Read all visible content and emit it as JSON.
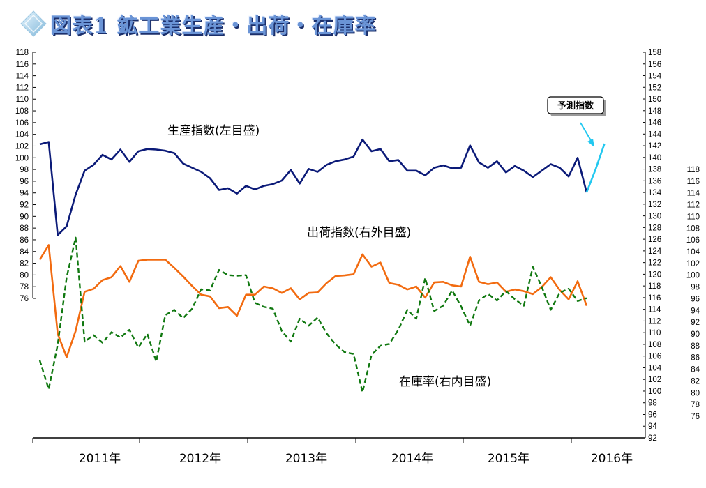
{
  "title": "図表1 鉱工業生産・出荷・在庫率",
  "chart_data": {
    "type": "line",
    "x_labels": [
      "2011年",
      "2012年",
      "2013年",
      "2014年",
      "2015年",
      "2016年"
    ],
    "axes": {
      "left": {
        "min": 76,
        "max": 118,
        "step": 2
      },
      "right_outer": {
        "min": 92,
        "max": 158,
        "step": 2
      },
      "right_inner": {
        "min": 76,
        "max": 118,
        "step": 2
      }
    },
    "annotations": {
      "production": "生産指数(左目盛)",
      "shipments": "出荷指数(右外目盛)",
      "inventory": "在庫率(右内目盛)",
      "forecast": "予測指数"
    },
    "series": [
      {
        "key": "production",
        "axis": "left",
        "color": "#0b1a78",
        "style": "solid",
        "values": [
          102.3,
          102.7,
          86.8,
          88.3,
          93.7,
          97.8,
          98.8,
          100.5,
          99.7,
          101.4,
          99.3,
          101.1,
          101.5,
          101.4,
          101.2,
          100.8,
          99.0,
          98.3,
          97.6,
          96.5,
          94.5,
          94.8,
          93.9,
          95.2,
          94.6,
          95.2,
          95.5,
          96.1,
          97.9,
          95.6,
          98.1,
          97.6,
          98.8,
          99.4,
          99.7,
          100.2,
          103.1,
          101.1,
          101.5,
          99.4,
          99.6,
          97.8,
          97.8,
          97.0,
          98.3,
          98.7,
          98.2,
          98.3,
          102.1,
          99.2,
          98.3,
          99.4,
          97.5,
          98.6,
          97.8,
          96.7,
          97.8,
          98.9,
          98.3,
          96.8,
          100.0,
          94.1
        ]
      },
      {
        "key": "forecast",
        "axis": "left",
        "color": "#22c8f0",
        "style": "solid",
        "index_offset": 61,
        "values": [
          94.1,
          98.0,
          102.4
        ]
      },
      {
        "key": "shipments",
        "axis": "right_outer",
        "color": "#f26b10",
        "style": "solid",
        "values": [
          122.5,
          125.0,
          109.8,
          105.8,
          110.3,
          117.0,
          117.5,
          119.0,
          119.5,
          121.4,
          118.7,
          122.3,
          122.5,
          122.5,
          122.5,
          121.1,
          119.6,
          118.0,
          116.5,
          116.2,
          114.2,
          114.4,
          112.9,
          116.5,
          116.5,
          117.9,
          117.6,
          116.8,
          117.6,
          115.7,
          116.8,
          116.9,
          118.5,
          119.7,
          119.8,
          120.0,
          123.4,
          121.3,
          122.0,
          118.5,
          118.2,
          117.4,
          117.9,
          116.0,
          118.6,
          118.7,
          118.1,
          117.9,
          123.0,
          118.7,
          118.3,
          118.6,
          117.0,
          117.4,
          117.1,
          116.6,
          117.8,
          119.5,
          117.3,
          115.7,
          118.8,
          114.6
        ]
      },
      {
        "key": "inventory",
        "axis": "right_inner",
        "color": "#107810",
        "style": "dashed",
        "values": [
          85.5,
          80.6,
          88.2,
          99.6,
          106.4,
          88.7,
          89.8,
          88.5,
          90.3,
          89.4,
          90.7,
          87.7,
          90.0,
          85.3,
          93.2,
          94.1,
          92.7,
          94.3,
          97.6,
          97.4,
          100.9,
          100.0,
          99.9,
          100.0,
          95.3,
          94.6,
          94.3,
          90.5,
          88.7,
          92.6,
          91.4,
          92.8,
          90.1,
          88.2,
          86.9,
          86.6,
          80.1,
          86.4,
          88.0,
          88.3,
          90.7,
          94.1,
          92.6,
          99.5,
          93.9,
          94.8,
          97.4,
          94.7,
          91.4,
          95.7,
          96.8,
          95.7,
          97.3,
          95.9,
          94.8,
          101.4,
          98.0,
          94.1,
          97.0,
          97.7,
          95.6,
          96.1
        ]
      }
    ]
  }
}
